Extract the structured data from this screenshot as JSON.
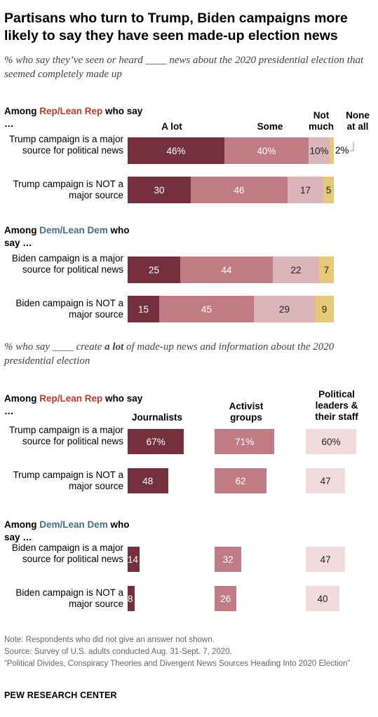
{
  "title": "Partisans who turn to Trump, Biden campaigns more likely to say they have seen made-up election news",
  "colors": {
    "a_lot": "#74303f",
    "some": "#c07c85",
    "not_much": "#dbb4b9",
    "none": "#e6c878",
    "journalists": "#74303f",
    "activists": "#c07c85",
    "leaders": "#f0dcdf",
    "rep": "#bf3927",
    "dem": "#436f8c"
  },
  "chart_data": [
    {
      "type": "bar",
      "stacked": true,
      "orientation": "horizontal",
      "subtitle": "% who say they’ve seen or heard ____ news about the 2020 presidential election that seemed completely made up",
      "series_names": [
        "A lot",
        "Some",
        "Not much",
        "None at all"
      ],
      "xlim": [
        0,
        100
      ],
      "groups": [
        {
          "label_pre": "Among ",
          "label_party": "Rep/Lean Rep",
          "label_post": " who say …",
          "party": "rep",
          "rows": [
            {
              "label": "Trump campaign is a major source for political news",
              "values": [
                46,
                40,
                10,
                2
              ],
              "labels": [
                "46%",
                "40%",
                "10%",
                "2%"
              ]
            },
            {
              "label": "Trump campaign is NOT a major source",
              "values": [
                30,
                46,
                17,
                5
              ],
              "labels": [
                "30",
                "46",
                "17",
                "5"
              ]
            }
          ]
        },
        {
          "label_pre": "Among ",
          "label_party": "Dem/Lean Dem",
          "label_post": " who say …",
          "party": "dem",
          "rows": [
            {
              "label": "Biden campaign is a major source for political news",
              "values": [
                25,
                44,
                22,
                7
              ],
              "labels": [
                "25",
                "44",
                "22",
                "7"
              ]
            },
            {
              "label": "Biden campaign is NOT a major source",
              "values": [
                15,
                45,
                29,
                9
              ],
              "labels": [
                "15",
                "45",
                "29",
                "9"
              ]
            }
          ]
        }
      ]
    },
    {
      "type": "bar",
      "orientation": "horizontal",
      "subtitle_pre": "% who say ____ create ",
      "subtitle_em": "a lot",
      "subtitle_post": " of made-up news and information about the 2020 presidential election",
      "series_names": [
        "Journalists",
        "Activist groups",
        "Political leaders & their staff"
      ],
      "xlim": [
        0,
        100
      ],
      "groups": [
        {
          "label_pre": "Among ",
          "label_party": "Rep/Lean Rep",
          "label_post": " who say …",
          "party": "rep",
          "rows": [
            {
              "label": "Trump campaign is a major source for political news",
              "values": [
                67,
                71,
                60
              ],
              "labels": [
                "67%",
                "71%",
                "60%"
              ]
            },
            {
              "label": "Trump campaign is NOT a major source",
              "values": [
                48,
                62,
                47
              ],
              "labels": [
                "48",
                "62",
                "47"
              ]
            }
          ]
        },
        {
          "label_pre": "Among ",
          "label_party": "Dem/Lean Dem",
          "label_post": " who say …",
          "party": "dem",
          "rows": [
            {
              "label": "Biden campaign is a major source for political news",
              "values": [
                14,
                32,
                47
              ],
              "labels": [
                "14",
                "32",
                "47"
              ]
            },
            {
              "label": "Biden campaign is NOT a major source",
              "values": [
                8,
                26,
                40
              ],
              "labels": [
                "8",
                "26",
                "40"
              ]
            }
          ]
        }
      ]
    }
  ],
  "notes": [
    "Note: Respondents who did not give an answer not shown.",
    "Source: Survey of U.S. adults conducted Aug. 31-Sept. 7, 2020.",
    "“Political Divides, Conspiracy Theories and Divergent News Sources Heading Into 2020 Election”"
  ],
  "source_org": "PEW RESEARCH CENTER"
}
